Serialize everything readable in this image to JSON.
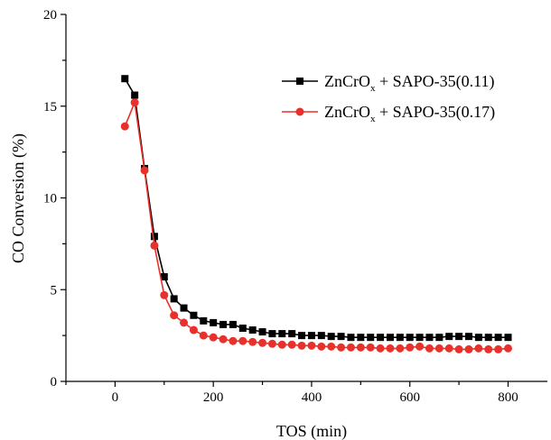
{
  "chart_data": {
    "type": "line",
    "xlabel": "TOS (min)",
    "ylabel": "CO Conversion (%)",
    "xlim": [
      -100,
      880
    ],
    "ylim": [
      0,
      20
    ],
    "xticks": [
      0,
      200,
      400,
      600,
      800
    ],
    "yticks": [
      0,
      5,
      10,
      15,
      20
    ],
    "grid": false,
    "legend_position": "top-right",
    "series": [
      {
        "name_main": "ZnCrO",
        "name_sub": "x",
        "name_rest": " + SAPO-35(0.11)",
        "color": "#000000",
        "marker": "square",
        "x": [
          20,
          40,
          60,
          80,
          100,
          120,
          140,
          160,
          180,
          200,
          220,
          240,
          260,
          280,
          300,
          320,
          340,
          360,
          380,
          400,
          420,
          440,
          460,
          480,
          500,
          520,
          540,
          560,
          580,
          600,
          620,
          640,
          660,
          680,
          700,
          720,
          740,
          760,
          780,
          800
        ],
        "y": [
          16.5,
          15.6,
          11.6,
          7.9,
          5.7,
          4.5,
          4.0,
          3.6,
          3.3,
          3.2,
          3.1,
          3.1,
          2.9,
          2.8,
          2.7,
          2.6,
          2.6,
          2.6,
          2.5,
          2.5,
          2.5,
          2.45,
          2.45,
          2.4,
          2.4,
          2.4,
          2.4,
          2.4,
          2.4,
          2.4,
          2.4,
          2.4,
          2.4,
          2.45,
          2.45,
          2.45,
          2.4,
          2.4,
          2.4,
          2.4
        ]
      },
      {
        "name_main": "ZnCrO",
        "name_sub": "x",
        "name_rest": " + SAPO-35(0.17)",
        "color": "#e8312a",
        "marker": "circle",
        "x": [
          20,
          40,
          60,
          80,
          100,
          120,
          140,
          160,
          180,
          200,
          220,
          240,
          260,
          280,
          300,
          320,
          340,
          360,
          380,
          400,
          420,
          440,
          460,
          480,
          500,
          520,
          540,
          560,
          580,
          600,
          620,
          640,
          660,
          680,
          700,
          720,
          740,
          760,
          780,
          800
        ],
        "y": [
          13.9,
          15.2,
          11.5,
          7.4,
          4.7,
          3.6,
          3.2,
          2.8,
          2.5,
          2.4,
          2.3,
          2.2,
          2.2,
          2.15,
          2.1,
          2.05,
          2.0,
          2.0,
          1.95,
          1.95,
          1.9,
          1.9,
          1.85,
          1.85,
          1.85,
          1.85,
          1.8,
          1.8,
          1.8,
          1.85,
          1.9,
          1.8,
          1.8,
          1.8,
          1.75,
          1.75,
          1.8,
          1.75,
          1.75,
          1.8
        ]
      }
    ]
  }
}
